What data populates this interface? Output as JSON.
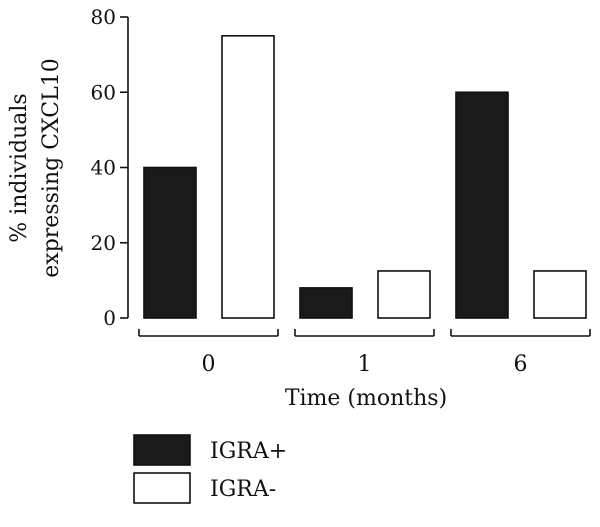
{
  "chart_data": {
    "type": "bar",
    "categories": [
      "0",
      "1",
      "6"
    ],
    "series": [
      {
        "name": "IGRA+",
        "values": [
          40,
          8,
          60
        ],
        "fill": "#1a1a1a"
      },
      {
        "name": "IGRA-",
        "values": [
          75,
          12.5,
          12.5
        ],
        "fill": "#ffffff"
      }
    ],
    "xlabel": "Time (months)",
    "ylabel_lines": [
      "% individuals",
      "expressing CXCL10"
    ],
    "ylim": [
      0,
      80
    ],
    "yticks": [
      0,
      20,
      40,
      60,
      80
    ],
    "grid": false,
    "legend_position": "bottom-left"
  }
}
